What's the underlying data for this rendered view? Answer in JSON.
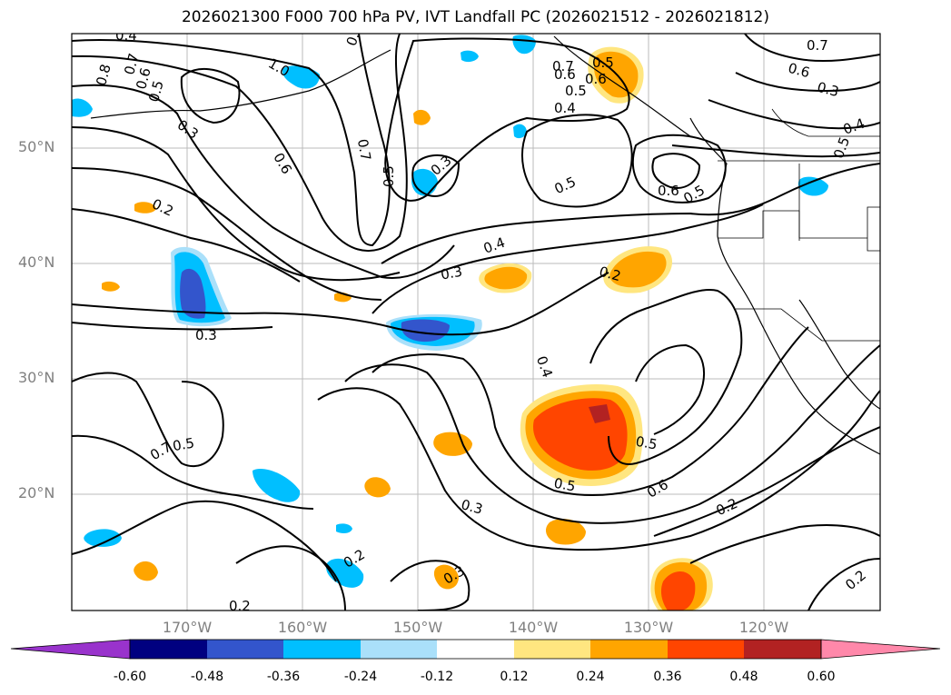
{
  "title": "2026021300 F000 700 hPa PV, IVT Landfall PC (2026021512 - 2026021812)",
  "lat_labels": [
    "50°N",
    "40°N",
    "30°N",
    "20°N"
  ],
  "lon_labels": [
    "170°W",
    "160°W",
    "150°W",
    "140°W",
    "130°W",
    "120°W"
  ],
  "contour_labels": [
    "0.4",
    "0.8",
    "0.7",
    "0.6",
    "0.5",
    "1.0",
    "0.8",
    "0.6",
    "0.7",
    "0.6",
    "0.5",
    "0.7",
    "0.6",
    "0.5",
    "0.4",
    "0.3",
    "0.3",
    "0.6",
    "0.7",
    "0.5",
    "0.3",
    "0.5",
    "0.6",
    "0.5",
    "0.4",
    "0.5",
    "0.2",
    "0.4",
    "0.3",
    "0.2",
    "0.3",
    "0.4",
    "0.7",
    "0.5",
    "0.5",
    "0.6",
    "0.5",
    "0.3",
    "0.2",
    "0.2",
    "0.3",
    "0.2",
    "0.2"
  ],
  "colorbar": {
    "colors": [
      "#9933cc",
      "#000080",
      "#3355cc",
      "#00bfff",
      "#aae0fa",
      "#ffffff",
      "#ffe680",
      "#ffa500",
      "#ff4500",
      "#b22222",
      "#ff88aa"
    ],
    "ticks": [
      "-0.60",
      "-0.48",
      "-0.36",
      "-0.24",
      "-0.12",
      "0.12",
      "0.24",
      "0.36",
      "0.48",
      "0.60"
    ]
  }
}
